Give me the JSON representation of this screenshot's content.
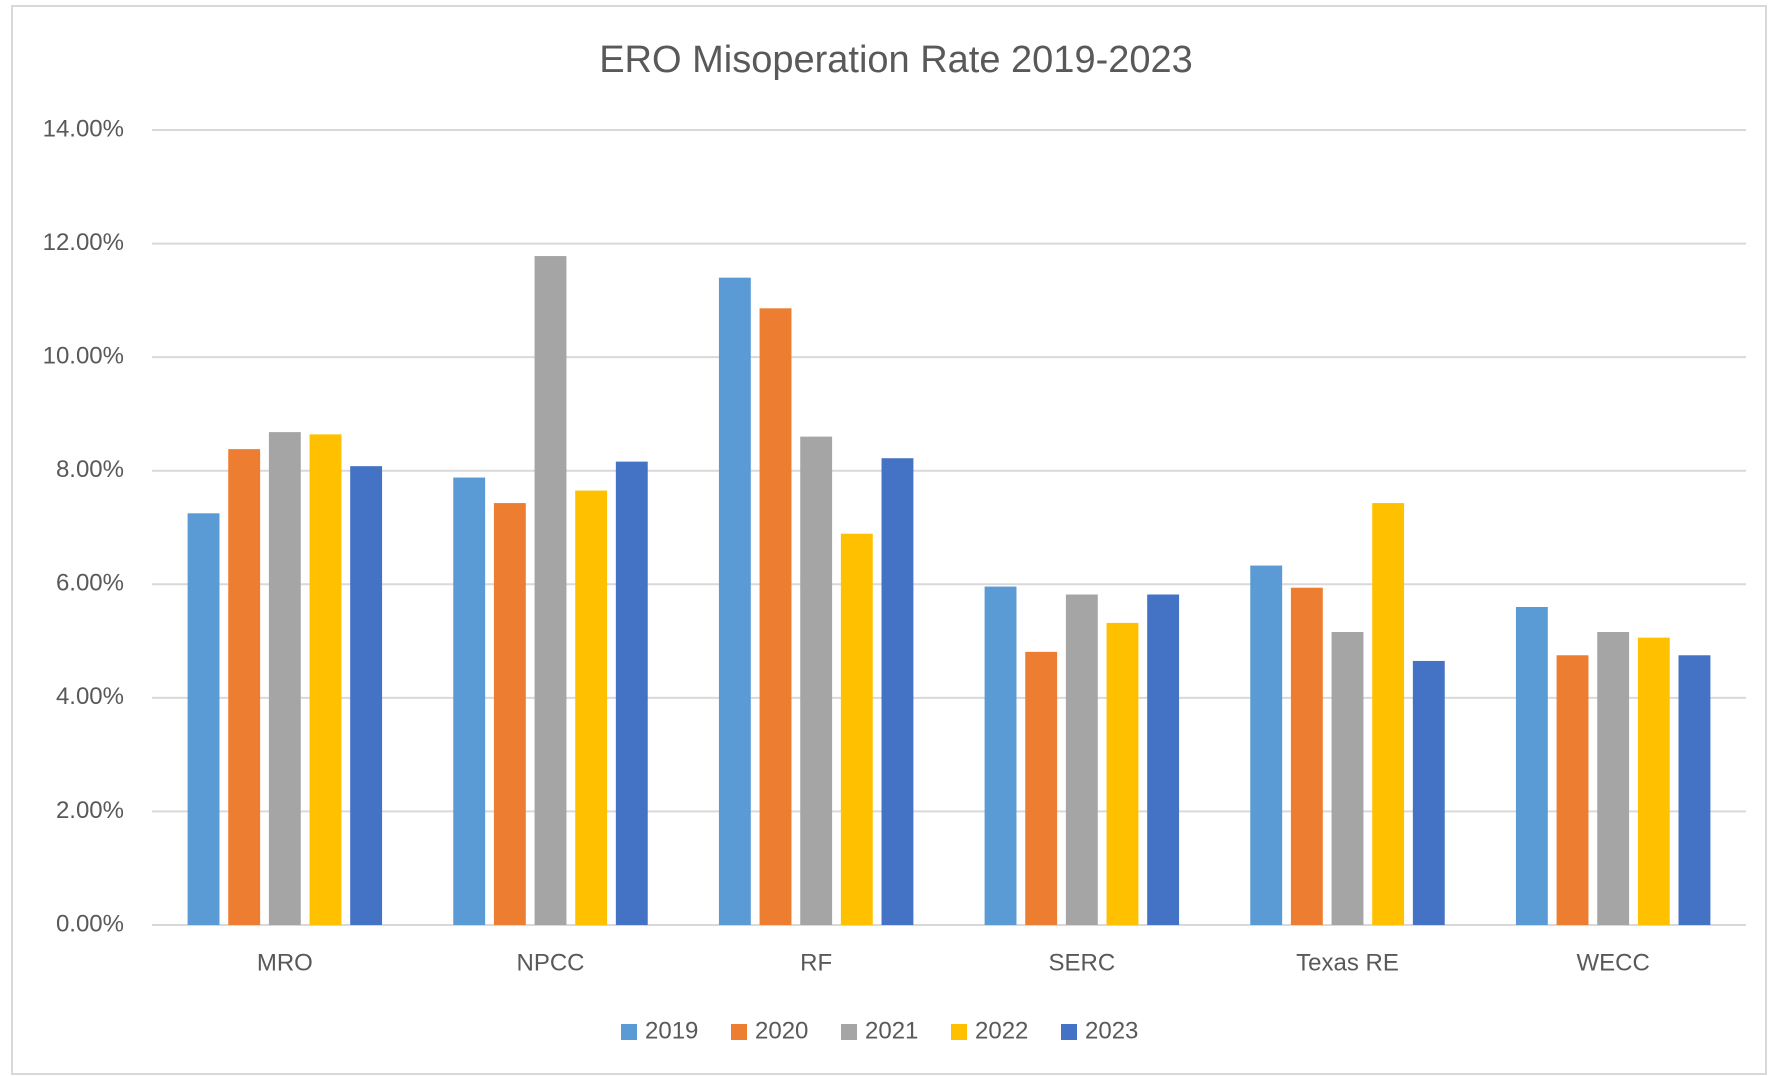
{
  "chart_data": {
    "type": "bar",
    "title": "ERO Misoperation Rate 2019-2023",
    "categories": [
      "MRO",
      "NPCC",
      "RF",
      "SERC",
      "Texas RE",
      "WECC"
    ],
    "series": [
      {
        "name": "2019",
        "color": "#5b9bd5",
        "values": [
          7.25,
          7.88,
          11.4,
          5.96,
          6.33,
          5.6
        ]
      },
      {
        "name": "2020",
        "color": "#ed7d31",
        "values": [
          8.38,
          7.43,
          10.86,
          4.81,
          5.94,
          4.75
        ]
      },
      {
        "name": "2021",
        "color": "#a5a5a5",
        "values": [
          8.68,
          11.78,
          8.6,
          5.82,
          5.16,
          5.16
        ]
      },
      {
        "name": "2022",
        "color": "#ffc000",
        "values": [
          8.64,
          7.65,
          6.89,
          5.32,
          7.43,
          5.06
        ]
      },
      {
        "name": "2023",
        "color": "#4472c4",
        "values": [
          8.08,
          8.16,
          8.22,
          5.82,
          4.65,
          4.75
        ]
      }
    ],
    "ylim": [
      0,
      14
    ],
    "yticks": [
      {
        "value": 0,
        "label": "0.00%"
      },
      {
        "value": 2,
        "label": "2.00%"
      },
      {
        "value": 4,
        "label": "4.00%"
      },
      {
        "value": 6,
        "label": "6.00%"
      },
      {
        "value": 8,
        "label": "8.00%"
      },
      {
        "value": 10,
        "label": "10.00%"
      },
      {
        "value": 12,
        "label": "12.00%"
      },
      {
        "value": 14,
        "label": "14.00%"
      }
    ],
    "grid": true,
    "legend": "bottom"
  }
}
